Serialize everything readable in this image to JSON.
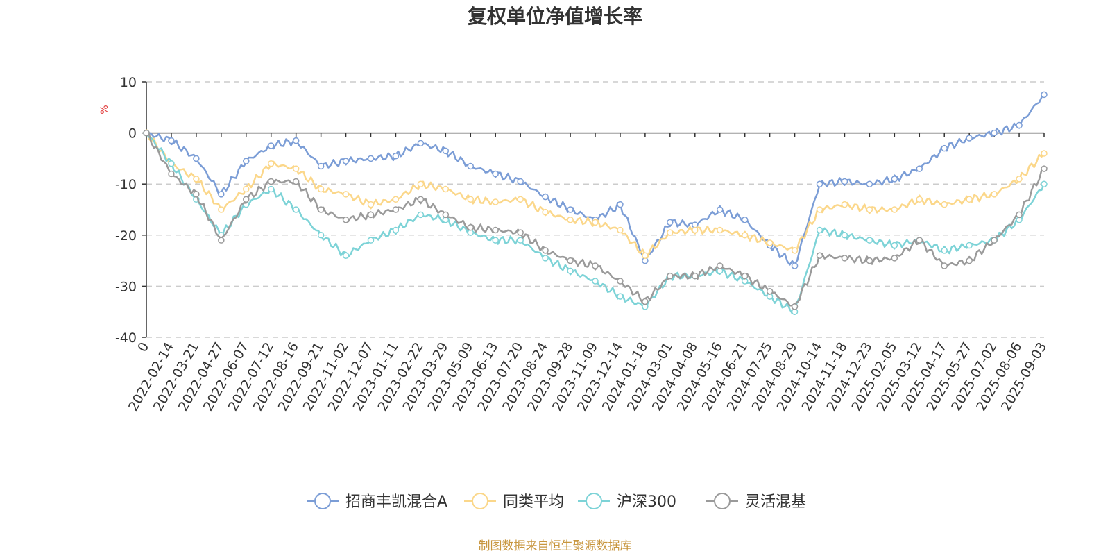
{
  "chart_data": {
    "type": "line",
    "title": "复权单位净值增长率",
    "ylabel": "%",
    "ylim": [
      -40,
      10
    ],
    "yticks": [
      10,
      0,
      -10,
      -20,
      -30,
      -40
    ],
    "grid": true,
    "legend_position": "bottom-center",
    "x_tick_labels": [
      "0",
      "2022-02-14",
      "2022-03-21",
      "2022-04-27",
      "2022-06-07",
      "2022-07-12",
      "2022-08-16",
      "2022-09-21",
      "2022-11-02",
      "2022-12-07",
      "2023-01-11",
      "2023-02-22",
      "2023-03-29",
      "2023-05-09",
      "2023-06-13",
      "2023-07-20",
      "2023-08-24",
      "2023-09-28",
      "2023-11-09",
      "2023-12-14",
      "2024-01-18",
      "2024-03-01",
      "2024-04-08",
      "2024-05-16",
      "2024-06-21",
      "2024-07-25",
      "2024-08-29",
      "2024-10-14",
      "2024-11-18",
      "2024-12-23",
      "2025-02-05",
      "2025-03-12",
      "2025-04-17",
      "2025-05-27",
      "2025-07-02",
      "2025-08-06",
      "2025-09-03"
    ],
    "series": [
      {
        "name": "招商丰凯混合A",
        "color": "#7b9dd6",
        "values": [
          0,
          -1.5,
          -5,
          -12,
          -5.5,
          -2.5,
          -1.5,
          -6.5,
          -5.5,
          -5,
          -4.5,
          -2,
          -3.5,
          -6.5,
          -8,
          -9.5,
          -12.5,
          -15,
          -17,
          -14,
          -25,
          -17.5,
          -18,
          -15,
          -17,
          -22,
          -26,
          -10,
          -9.5,
          -10,
          -9,
          -7,
          -3,
          -1,
          0,
          1.5,
          7.5
        ]
      },
      {
        "name": "同类平均",
        "color": "#fbd78a",
        "values": [
          0,
          -6,
          -9,
          -15,
          -11,
          -6,
          -7,
          -11,
          -12,
          -14,
          -13,
          -10,
          -11,
          -13,
          -13.5,
          -13,
          -15.5,
          -17,
          -17.5,
          -19,
          -24,
          -19.5,
          -19,
          -19,
          -20,
          -21.5,
          -23,
          -15,
          -14,
          -15,
          -15,
          -13,
          -14,
          -13,
          -12,
          -9,
          -4
        ]
      },
      {
        "name": "沪深300",
        "color": "#7dd3d7",
        "values": [
          0,
          -6,
          -13,
          -20,
          -14,
          -11,
          -15,
          -20,
          -24,
          -21,
          -19,
          -16,
          -17,
          -19.5,
          -21,
          -21,
          -24.5,
          -27,
          -29,
          -32,
          -34,
          -28,
          -28,
          -27,
          -29,
          -32,
          -35,
          -19,
          -20,
          -21,
          -22,
          -21,
          -23,
          -22,
          -21,
          -17,
          -10
        ]
      },
      {
        "name": "灵活混基",
        "color": "#9a9a9a",
        "values": [
          0,
          -8,
          -12,
          -21,
          -13,
          -9.5,
          -9.5,
          -15,
          -17,
          -16,
          -15,
          -13,
          -16,
          -18.5,
          -19,
          -19.5,
          -23,
          -25,
          -26,
          -29,
          -33,
          -28,
          -28,
          -26,
          -28,
          -31,
          -34,
          -24,
          -24.5,
          -25,
          -24.5,
          -21,
          -26,
          -25,
          -21,
          -16,
          -7
        ]
      }
    ]
  },
  "source_note": "制图数据来自恒生聚源数据库"
}
